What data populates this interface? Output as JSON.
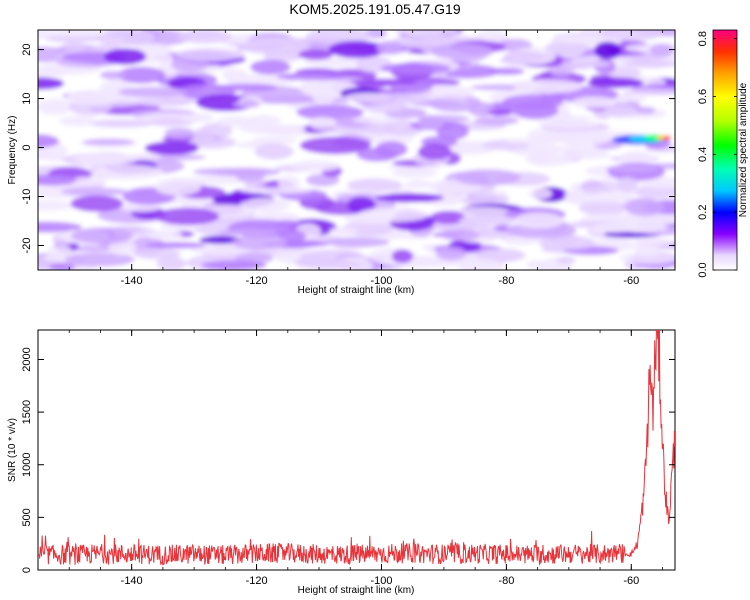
{
  "title": "KOM5.2025.191.05.47.G19",
  "chart_data": [
    {
      "type": "heatmap",
      "xlabel": "Height of straight line (km)",
      "ylabel": "Frequency (Hz)",
      "xlim": [
        -155,
        -53
      ],
      "ylim": [
        -25,
        24
      ],
      "xticks": [
        -140,
        -120,
        -100,
        -80,
        -60
      ],
      "yticks": [
        -20,
        -10,
        0,
        10,
        20
      ],
      "xtick_labels": [
        "-140",
        "-120",
        "-100",
        "-80",
        "-60"
      ],
      "ytick_labels": [
        "-20",
        "-10",
        "0",
        "10",
        "20"
      ],
      "colorbar": {
        "label": "Normalized spectral amplitude",
        "range": [
          0.0,
          0.83
        ],
        "ticks": [
          0.0,
          0.2,
          0.4,
          0.6,
          0.8
        ],
        "tick_labels": [
          "0.0",
          "0.2",
          "0.4",
          "0.6",
          "0.8"
        ]
      },
      "peak": {
        "x": -56,
        "y": 2,
        "value": 0.8
      }
    },
    {
      "type": "line",
      "xlabel": "Height of straight line (km)",
      "ylabel": "SNR (10 * v/v)",
      "xlim": [
        -155,
        -53
      ],
      "ylim": [
        0,
        2280
      ],
      "xticks": [
        -140,
        -120,
        -100,
        -80,
        -60
      ],
      "yticks": [
        0,
        500,
        1000,
        1500,
        2000
      ],
      "xtick_labels": [
        "-140",
        "-120",
        "-100",
        "-80",
        "-60"
      ],
      "ytick_labels": [
        "0",
        "500",
        "1000",
        "1500",
        "2000"
      ],
      "series": [
        {
          "color": "#e8333a",
          "x": [
            -155,
            -150,
            -145,
            -140,
            -135,
            -130,
            -125,
            -120,
            -115,
            -110,
            -105,
            -100,
            -95,
            -90,
            -85,
            -80,
            -75,
            -70,
            -65,
            -62,
            -60,
            -59,
            -58,
            -57.5,
            -57,
            -56.5,
            -56,
            -55.5,
            -55,
            -54.5,
            -54,
            -53.5,
            -53
          ],
          "y": [
            150,
            140,
            155,
            150,
            145,
            150,
            140,
            155,
            160,
            150,
            145,
            155,
            160,
            150,
            155,
            150,
            145,
            155,
            150,
            160,
            150,
            250,
            700,
            1200,
            1900,
            1500,
            2280,
            2000,
            1200,
            700,
            450,
            900,
            1250
          ]
        }
      ]
    }
  ]
}
